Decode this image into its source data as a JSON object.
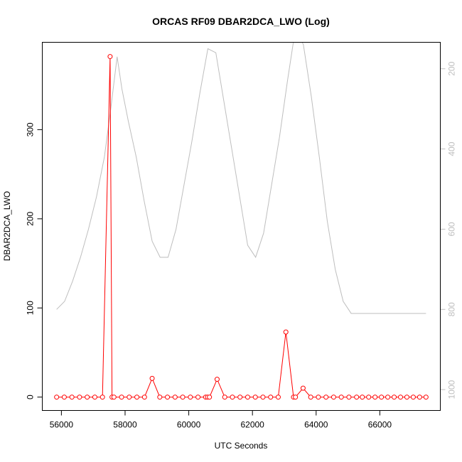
{
  "chart_data": {
    "type": "line",
    "title": "ORCAS RF09 DBAR2DCA_LWO (Log)",
    "xlabel": "UTC Seconds",
    "ylabel": "DBAR2DCA_LWO",
    "xlim": [
      55400,
      67900
    ],
    "ylim": [
      -15,
      398
    ],
    "y2lim": [
      1052,
      134
    ],
    "y2_reversed": true,
    "x_ticks": [
      56000,
      58000,
      60000,
      62000,
      64000,
      66000
    ],
    "y_ticks": [
      0,
      100,
      200,
      300
    ],
    "y2_ticks": [
      200,
      400,
      600,
      800,
      1000
    ],
    "grid": false,
    "series": [
      {
        "color": "#ff0000",
        "marker": "open-circle",
        "axis": "left",
        "x": [
          55850,
          56090,
          56330,
          56570,
          56810,
          57050,
          57290,
          57530,
          57590,
          57650,
          57890,
          58130,
          58370,
          58610,
          58850,
          59090,
          59330,
          59570,
          59810,
          60050,
          60290,
          60530,
          60590,
          60650,
          60890,
          61130,
          61370,
          61610,
          61850,
          62090,
          62330,
          62570,
          62810,
          63050,
          63290,
          63350,
          63590,
          63830,
          64070,
          64310,
          64550,
          64790,
          65030,
          65270,
          65450,
          65650,
          65850,
          66050,
          66250,
          66450,
          66650,
          66850,
          67050,
          67250,
          67450
        ],
        "y": [
          0,
          0,
          0,
          0,
          0,
          0,
          0,
          382,
          0,
          0,
          0,
          0,
          0,
          0,
          21,
          0,
          0,
          0,
          0,
          0,
          0,
          0,
          0,
          0,
          20,
          0,
          0,
          0,
          0,
          0,
          0,
          0,
          0,
          73,
          0,
          0,
          10,
          0,
          0,
          0,
          0,
          0,
          0,
          0,
          0,
          0,
          0,
          0,
          0,
          0,
          0,
          0,
          0,
          0,
          0
        ]
      },
      {
        "color": "#bebebe",
        "marker": "none",
        "axis": "right",
        "x": [
          55850,
          56100,
          56350,
          56600,
          56850,
          57100,
          57350,
          57550,
          57750,
          57900,
          58100,
          58350,
          58600,
          58850,
          59100,
          59350,
          59600,
          59850,
          60100,
          60350,
          60600,
          60850,
          61100,
          61350,
          61600,
          61850,
          62100,
          62350,
          62600,
          62850,
          63100,
          63350,
          63600,
          63850,
          64100,
          64350,
          64600,
          64850,
          65100,
          65350,
          65600,
          65850,
          66100,
          66350,
          66600,
          66850,
          67100,
          67450
        ],
        "y": [
          800,
          780,
          730,
          670,
          600,
          520,
          420,
          300,
          170,
          250,
          330,
          420,
          530,
          630,
          670,
          670,
          600,
          490,
          380,
          260,
          150,
          160,
          280,
          400,
          520,
          640,
          670,
          610,
          490,
          370,
          230,
          100,
          140,
          270,
          420,
          580,
          700,
          780,
          810,
          810,
          810,
          810,
          810,
          810,
          810,
          810,
          810,
          810
        ]
      }
    ]
  }
}
